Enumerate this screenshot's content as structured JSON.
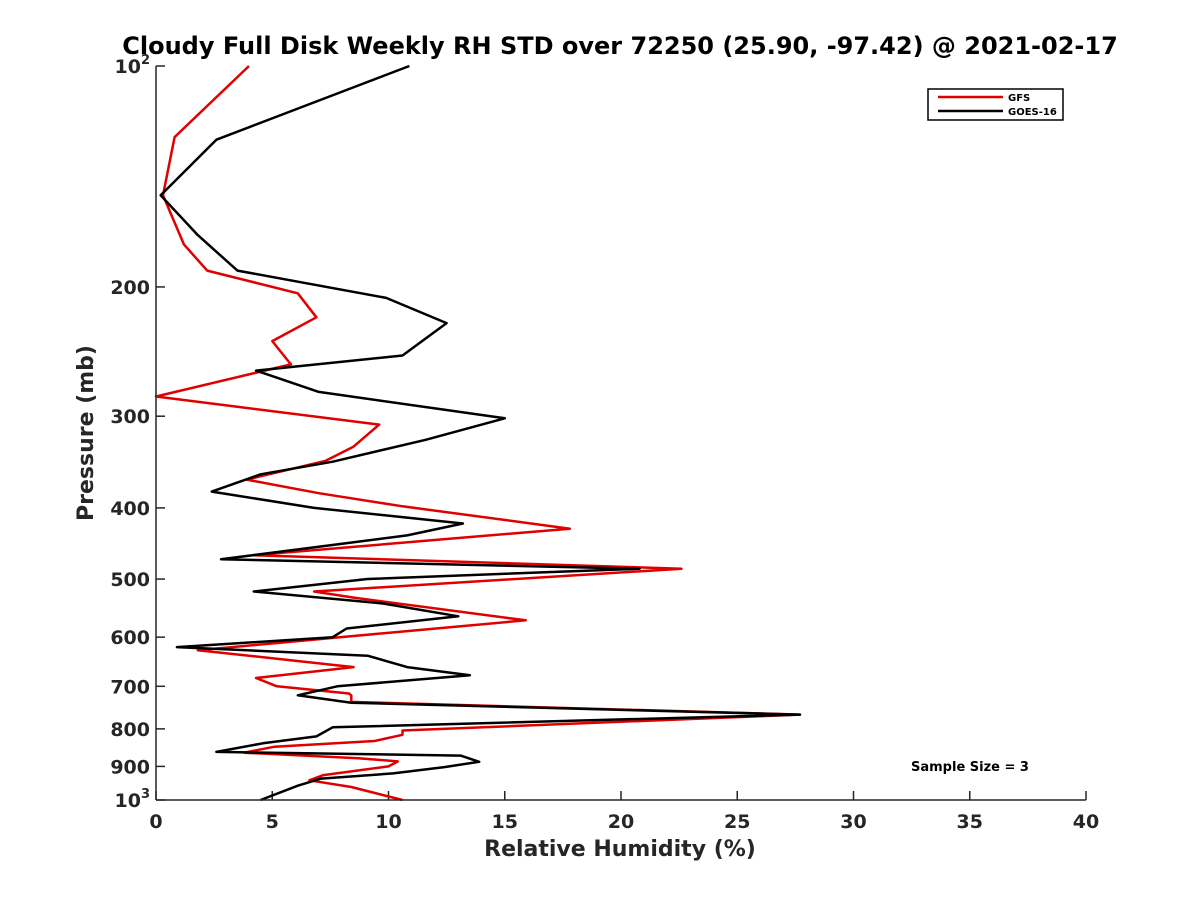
{
  "chart_data": {
    "type": "line",
    "title": "Cloudy Full Disk Weekly RH STD over 72250 (25.90, -97.42) @ 2021-02-17",
    "xlabel": "Relative Humidity (%)",
    "ylabel": "Pressure (mb)",
    "xlim": [
      0,
      40
    ],
    "ylim": [
      100,
      1000
    ],
    "y_scale": "log",
    "y_reversed": true,
    "x_ticks": [
      "0",
      "5",
      "10",
      "15",
      "20",
      "25",
      "30",
      "35",
      "40"
    ],
    "y_ticks": [
      {
        "value": 100,
        "base": "10",
        "exp": "2"
      },
      {
        "value": 200,
        "label": "200"
      },
      {
        "value": 300,
        "label": "300"
      },
      {
        "value": 400,
        "label": "400"
      },
      {
        "value": 500,
        "label": "500"
      },
      {
        "value": 600,
        "label": "600"
      },
      {
        "value": 700,
        "label": "700"
      },
      {
        "value": 800,
        "label": "800"
      },
      {
        "value": 900,
        "label": "900"
      },
      {
        "value": 1000,
        "base": "10",
        "exp": "3"
      }
    ],
    "grid": false,
    "legend_position": "top-right",
    "annotation": "Sample Size = 3",
    "series": [
      {
        "name": "GFS",
        "color": "#e00000",
        "points": [
          [
            4.0,
            100
          ],
          [
            0.8,
            125
          ],
          [
            0.3,
            150
          ],
          [
            1.2,
            175
          ],
          [
            2.2,
            190
          ],
          [
            6.1,
            204
          ],
          [
            6.9,
            220
          ],
          [
            5.0,
            237
          ],
          [
            5.8,
            255
          ],
          [
            0.0,
            282
          ],
          [
            9.6,
            308
          ],
          [
            8.5,
            330
          ],
          [
            7.3,
            345
          ],
          [
            3.9,
            366
          ],
          [
            7.0,
            382
          ],
          [
            10.6,
            398
          ],
          [
            17.8,
            427
          ],
          [
            4.2,
            464
          ],
          [
            22.6,
            484
          ],
          [
            6.8,
            520
          ],
          [
            8.5,
            530
          ],
          [
            15.9,
            569
          ],
          [
            1.8,
            625
          ],
          [
            8.5,
            659
          ],
          [
            4.3,
            682
          ],
          [
            5.2,
            700
          ],
          [
            8.3,
            716
          ],
          [
            8.4,
            720
          ],
          [
            8.4,
            735
          ],
          [
            27.7,
            765
          ],
          [
            10.6,
            804
          ],
          [
            10.6,
            815
          ],
          [
            9.4,
            831
          ],
          [
            5.1,
            846
          ],
          [
            3.8,
            862
          ],
          [
            8.7,
            877
          ],
          [
            10.4,
            886
          ],
          [
            10.0,
            900
          ],
          [
            7.2,
            925
          ],
          [
            6.6,
            940
          ],
          [
            8.4,
            960
          ],
          [
            10.6,
            1000
          ]
        ]
      },
      {
        "name": "GOES-16",
        "color": "#000000",
        "points": [
          [
            10.9,
            100
          ],
          [
            2.6,
            126
          ],
          [
            0.2,
            150
          ],
          [
            1.8,
            170
          ],
          [
            3.5,
            190
          ],
          [
            9.9,
            207
          ],
          [
            12.5,
            224
          ],
          [
            10.6,
            248
          ],
          [
            4.3,
            260
          ],
          [
            7.0,
            278
          ],
          [
            15.0,
            302
          ],
          [
            11.6,
            323
          ],
          [
            7.6,
            346
          ],
          [
            4.5,
            360
          ],
          [
            2.4,
            380
          ],
          [
            6.8,
            400
          ],
          [
            13.2,
            420
          ],
          [
            10.8,
            436
          ],
          [
            2.8,
            470
          ],
          [
            20.8,
            484
          ],
          [
            9.1,
            500
          ],
          [
            4.2,
            520
          ],
          [
            9.8,
            540
          ],
          [
            13.0,
            562
          ],
          [
            8.2,
            584
          ],
          [
            7.6,
            600
          ],
          [
            0.9,
            619
          ],
          [
            9.1,
            636
          ],
          [
            10.8,
            659
          ],
          [
            13.5,
            676
          ],
          [
            7.8,
            700
          ],
          [
            6.1,
            720
          ],
          [
            8.4,
            737
          ],
          [
            27.7,
            765
          ],
          [
            7.6,
            796
          ],
          [
            6.9,
            819
          ],
          [
            4.6,
            837
          ],
          [
            2.6,
            860
          ],
          [
            13.1,
            870
          ],
          [
            13.9,
            887
          ],
          [
            12.4,
            902
          ],
          [
            10.2,
            920
          ],
          [
            7.1,
            935
          ],
          [
            6.1,
            956
          ],
          [
            4.5,
            1000
          ]
        ]
      }
    ]
  }
}
